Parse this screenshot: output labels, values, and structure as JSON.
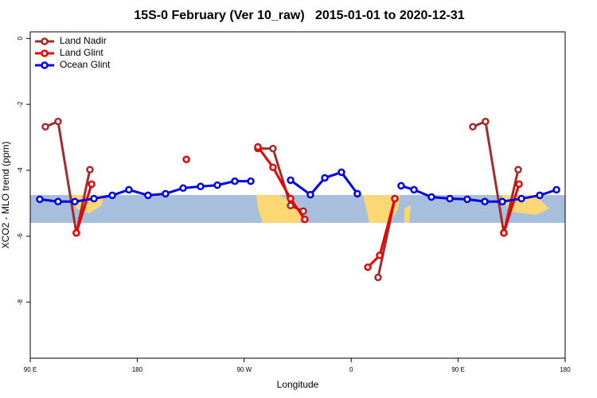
{
  "chart_data": {
    "type": "line",
    "title": "15S-0 February (Ver 10_raw)   2015-01-01 to 2020-12-31",
    "x_label": "Longitude",
    "y_label": "XCO2 - MLO trend (ppm)",
    "xlim": [
      90,
      540
    ],
    "ylim": [
      -9.7,
      0.2
    ],
    "xticks": [
      {
        "value": 90,
        "label": "90 E"
      },
      180,
      {
        "value": 270,
        "label": "90 W"
      },
      {
        "value": 360,
        "label": "0"
      },
      {
        "value": 450,
        "label": "90 E"
      },
      {
        "value": 540,
        "label": "180"
      }
    ],
    "yticks": [
      0,
      -2,
      -4,
      -6,
      -8
    ],
    "legend": "top-left",
    "series": [
      {
        "name": "Land Nadir",
        "color": "#a52a2a",
        "x": [
          102.7,
          113.4,
          128.8,
          140.2,
          null,
          281.5,
          294.2,
          309.0,
          319.7,
          null,
          382.6,
          396.7,
          null,
          462.3,
          473.0,
          488.4,
          500.5
        ],
        "values": [
          -2.68,
          -2.52,
          -5.9,
          -3.98,
          null,
          -3.34,
          -3.34,
          -5.07,
          -5.24,
          null,
          -7.25,
          -4.86,
          null,
          -2.68,
          -2.52,
          -5.9,
          -3.98
        ]
      },
      {
        "name": "Land Glint",
        "color": "#ee0000",
        "x": [
          128.8,
          141.6,
          null,
          221.3,
          null,
          281.5,
          294.2,
          309.0,
          321.0,
          null,
          374.0,
          384.0,
          396.7,
          null,
          488.4,
          501.2
        ],
        "values": [
          -5.9,
          -4.42,
          null,
          -3.67,
          null,
          -3.29,
          -3.91,
          -4.86,
          -5.49,
          null,
          -6.94,
          -6.58,
          -4.86,
          null,
          -5.9,
          -4.42
        ]
      },
      {
        "name": "Ocean Glint",
        "color": "#0000ee",
        "x": [
          98.0,
          113.4,
          127.5,
          143.6,
          159.0,
          173.0,
          189.1,
          203.8,
          218.6,
          233.3,
          247.4,
          262.1,
          275.5,
          null,
          309.0,
          325.7,
          337.8,
          351.8,
          365.2,
          null,
          402.0,
          412.8,
          427.5,
          443.0,
          457.6,
          472.4,
          487.1,
          503.2,
          518.6,
          532.7
        ],
        "values": [
          -4.88,
          -4.95,
          -4.95,
          -4.86,
          -4.76,
          -4.59,
          -4.76,
          -4.71,
          -4.54,
          -4.49,
          -4.45,
          -4.33,
          -4.33,
          null,
          -4.3,
          -4.74,
          -4.23,
          -4.06,
          -4.71,
          null,
          -4.47,
          -4.59,
          -4.81,
          -4.86,
          -4.88,
          -4.95,
          -4.95,
          -4.86,
          -4.76,
          -4.59
        ]
      }
    ]
  }
}
